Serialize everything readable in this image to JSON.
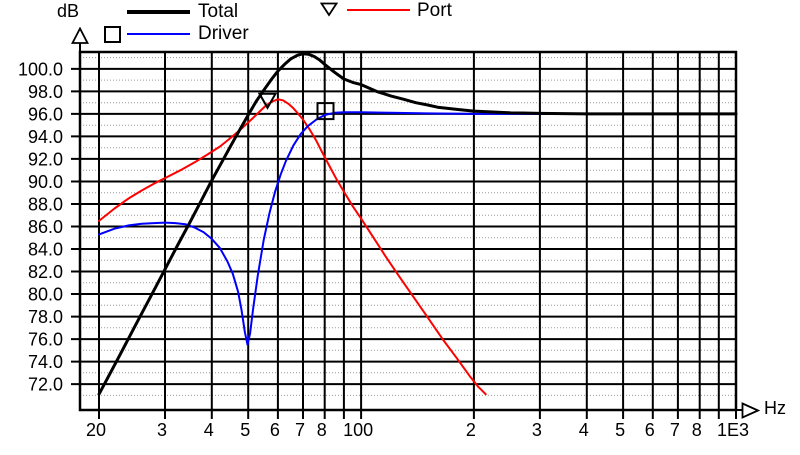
{
  "axes": {
    "y_title": "dB",
    "x_title": "Hz"
  },
  "legend": {
    "items": [
      {
        "label": "Total",
        "color": "#000000",
        "marker": "none"
      },
      {
        "label": "Driver",
        "color": "#0000ff",
        "marker": "square"
      },
      {
        "label": "Port",
        "color": "#ff0000",
        "marker": "triangle-down"
      }
    ]
  },
  "chart_data": {
    "type": "line",
    "title": "",
    "xlabel": "Hz",
    "ylabel": "dB",
    "x_scale": "log",
    "xlim": [
      17.8,
      1000
    ],
    "ylim": [
      69.7,
      101.5
    ],
    "grid": "on",
    "background": "#ffffff",
    "grid_color": "#000000",
    "minor_grid_color": "#999999",
    "legend_position": "top",
    "y_ticks": [
      {
        "db": 100,
        "label": "100.0"
      },
      {
        "db": 98,
        "label": "98.0"
      },
      {
        "db": 96,
        "label": "96.0"
      },
      {
        "db": 94,
        "label": "94.0"
      },
      {
        "db": 92,
        "label": "92.0"
      },
      {
        "db": 90,
        "label": "90.0"
      },
      {
        "db": 88,
        "label": "88.0"
      },
      {
        "db": 86,
        "label": "86.0"
      },
      {
        "db": 84,
        "label": "84.0"
      },
      {
        "db": 82,
        "label": "82.0"
      },
      {
        "db": 80,
        "label": "80.0"
      },
      {
        "db": 78,
        "label": "78.0"
      },
      {
        "db": 76,
        "label": "76.0"
      },
      {
        "db": 74,
        "label": "74.0"
      },
      {
        "db": 72,
        "label": "72.0"
      }
    ],
    "x_ticks": [
      {
        "hz": 20,
        "label": "20"
      },
      {
        "hz": 30,
        "label": "3"
      },
      {
        "hz": 40,
        "label": "4"
      },
      {
        "hz": 50,
        "label": "5"
      },
      {
        "hz": 60,
        "label": "6"
      },
      {
        "hz": 70,
        "label": "7"
      },
      {
        "hz": 80,
        "label": "8"
      },
      {
        "hz": 100,
        "label": "100"
      },
      {
        "hz": 200,
        "label": "2"
      },
      {
        "hz": 300,
        "label": "3"
      },
      {
        "hz": 400,
        "label": "4"
      },
      {
        "hz": 500,
        "label": "5"
      },
      {
        "hz": 600,
        "label": "6"
      },
      {
        "hz": 700,
        "label": "7"
      },
      {
        "hz": 800,
        "label": "8"
      },
      {
        "hz": 1000,
        "label": "1E3"
      }
    ],
    "x_gridlines_hz": [
      20,
      30,
      40,
      50,
      60,
      70,
      80,
      90,
      100,
      200,
      300,
      400,
      500,
      600,
      700,
      800,
      900,
      1000
    ],
    "y_minor_gridlines_db": [
      71,
      73,
      75,
      77,
      79,
      81,
      83,
      85,
      87,
      89,
      91,
      93,
      95,
      97,
      99,
      101
    ],
    "series": [
      {
        "name": "Total",
        "color": "#000000",
        "width": 3,
        "points": [
          [
            20,
            71.1
          ],
          [
            22.5,
            74.3
          ],
          [
            25,
            77.2
          ],
          [
            27.5,
            79.8
          ],
          [
            30,
            82.2
          ],
          [
            32.5,
            84.4
          ],
          [
            35,
            86.4
          ],
          [
            37.5,
            88.3
          ],
          [
            40,
            90.1
          ],
          [
            42.5,
            91.7
          ],
          [
            45,
            93.2
          ],
          [
            47.5,
            94.6
          ],
          [
            50,
            95.9
          ],
          [
            52.5,
            97.1
          ],
          [
            55,
            98.1
          ],
          [
            57.5,
            99.0
          ],
          [
            60,
            99.8
          ],
          [
            62.5,
            100.4
          ],
          [
            65,
            100.9
          ],
          [
            67.5,
            101.2
          ],
          [
            70,
            101.35
          ],
          [
            72.5,
            101.3
          ],
          [
            75,
            101.1
          ],
          [
            77.5,
            100.8
          ],
          [
            80,
            100.4
          ],
          [
            85,
            99.7
          ],
          [
            90,
            99.1
          ],
          [
            95,
            98.8
          ],
          [
            100,
            98.6
          ],
          [
            110,
            98.0
          ],
          [
            120,
            97.6
          ],
          [
            130,
            97.3
          ],
          [
            140,
            97.0
          ],
          [
            150,
            96.8
          ],
          [
            160,
            96.6
          ],
          [
            180,
            96.4
          ],
          [
            200,
            96.25
          ],
          [
            250,
            96.1
          ],
          [
            300,
            96.05
          ],
          [
            400,
            96.0
          ],
          [
            500,
            96.0
          ],
          [
            700,
            96.0
          ],
          [
            1000,
            96.0
          ]
        ]
      },
      {
        "name": "Driver",
        "color": "#0000ff",
        "width": 2,
        "points": [
          [
            20,
            85.3
          ],
          [
            22,
            85.8
          ],
          [
            24,
            86.1
          ],
          [
            26,
            86.25
          ],
          [
            28,
            86.3
          ],
          [
            30,
            86.35
          ],
          [
            32,
            86.3
          ],
          [
            34,
            86.2
          ],
          [
            36,
            85.9
          ],
          [
            38,
            85.5
          ],
          [
            40,
            84.9
          ],
          [
            42,
            84.1
          ],
          [
            44,
            82.9
          ],
          [
            45.5,
            81.8
          ],
          [
            47,
            80.2
          ],
          [
            48,
            78.6
          ],
          [
            49,
            76.6
          ],
          [
            49.8,
            75.5
          ],
          [
            50.6,
            76.5
          ],
          [
            51.5,
            78.6
          ],
          [
            53,
            81.6
          ],
          [
            55,
            84.8
          ],
          [
            57,
            87.2
          ],
          [
            59,
            89.1
          ],
          [
            61,
            90.6
          ],
          [
            63,
            91.8
          ],
          [
            66,
            93.2
          ],
          [
            69,
            94.2
          ],
          [
            72,
            94.9
          ],
          [
            76,
            95.5
          ],
          [
            80,
            95.9
          ],
          [
            85,
            96.1
          ],
          [
            90,
            96.15
          ],
          [
            100,
            96.15
          ],
          [
            120,
            96.1
          ],
          [
            150,
            96.05
          ],
          [
            200,
            96.0
          ],
          [
            300,
            96.0
          ],
          [
            500,
            96.0
          ],
          [
            1000,
            96.0
          ]
        ]
      },
      {
        "name": "Port",
        "color": "#ff0000",
        "width": 2,
        "points": [
          [
            20,
            86.5
          ],
          [
            22,
            87.6
          ],
          [
            24,
            88.5
          ],
          [
            26,
            89.2
          ],
          [
            28,
            89.8
          ],
          [
            30,
            90.3
          ],
          [
            33,
            91.0
          ],
          [
            36,
            91.7
          ],
          [
            39,
            92.4
          ],
          [
            42,
            93.1
          ],
          [
            45,
            93.9
          ],
          [
            48,
            94.7
          ],
          [
            51,
            95.5
          ],
          [
            54,
            96.3
          ],
          [
            56,
            96.8
          ],
          [
            58,
            97.1
          ],
          [
            60,
            97.3
          ],
          [
            62,
            97.2
          ],
          [
            64,
            96.9
          ],
          [
            66,
            96.5
          ],
          [
            68,
            96.0
          ],
          [
            70,
            95.5
          ],
          [
            73,
            94.6
          ],
          [
            76,
            93.6
          ],
          [
            79,
            92.5
          ],
          [
            82,
            91.5
          ],
          [
            86,
            90.2
          ],
          [
            90,
            89.1
          ],
          [
            95,
            87.8
          ],
          [
            100,
            86.7
          ],
          [
            108,
            85.0
          ],
          [
            116,
            83.4
          ],
          [
            125,
            81.8
          ],
          [
            135,
            80.2
          ],
          [
            150,
            78.0
          ],
          [
            165,
            76.0
          ],
          [
            180,
            74.3
          ],
          [
            195,
            72.7
          ],
          [
            205,
            71.8
          ],
          [
            215,
            71.1
          ]
        ]
      }
    ],
    "markers": [
      {
        "series": "Driver",
        "shape": "square",
        "hz": 80.4,
        "db": 96.25
      },
      {
        "series": "Port",
        "shape": "triangle-down",
        "hz": 56.3,
        "db": 97.25
      }
    ]
  }
}
